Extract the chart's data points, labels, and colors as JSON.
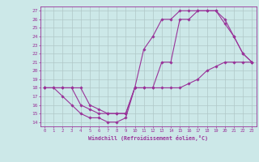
{
  "xlabel": "Windchill (Refroidissement éolien,°C)",
  "xlim": [
    -0.5,
    23.5
  ],
  "ylim": [
    13.5,
    27.5
  ],
  "xticks": [
    0,
    1,
    2,
    3,
    4,
    5,
    6,
    7,
    8,
    9,
    10,
    11,
    12,
    13,
    14,
    15,
    16,
    17,
    18,
    19,
    20,
    21,
    22,
    23
  ],
  "yticks": [
    14,
    15,
    16,
    17,
    18,
    19,
    20,
    21,
    22,
    23,
    24,
    25,
    26,
    27
  ],
  "bg_color": "#cce8e8",
  "grid_color": "#b0c8c8",
  "line_color": "#993399",
  "line1_x": [
    0,
    1,
    2,
    3,
    4,
    5,
    6,
    7,
    8,
    9,
    10,
    11,
    12,
    13,
    14,
    15,
    16,
    17,
    18,
    19,
    20,
    21,
    22,
    23
  ],
  "line1_y": [
    18,
    18,
    17,
    16,
    15,
    14.5,
    14.5,
    14,
    14,
    14.5,
    18,
    18,
    18,
    21,
    21,
    26,
    26,
    27,
    27,
    27,
    25.5,
    24,
    22,
    21
  ],
  "line2_x": [
    0,
    1,
    2,
    3,
    4,
    5,
    6,
    7,
    8,
    9,
    10,
    11,
    12,
    13,
    14,
    15,
    16,
    17,
    18,
    19,
    20,
    21,
    22,
    23
  ],
  "line2_y": [
    18,
    18,
    18,
    18,
    16,
    15.5,
    15,
    15,
    15,
    15,
    18,
    18,
    18,
    18,
    18,
    18,
    18.5,
    19,
    20,
    20.5,
    21,
    21,
    21,
    21
  ],
  "line3_x": [
    0,
    2,
    3,
    4,
    5,
    6,
    7,
    8,
    9,
    10,
    11,
    12,
    13,
    14,
    15,
    16,
    17,
    18,
    19,
    20,
    21,
    22,
    23
  ],
  "line3_y": [
    18,
    18,
    18,
    18,
    16,
    15.5,
    15,
    15,
    15,
    18,
    22.5,
    24,
    26,
    26,
    27,
    27,
    27,
    27,
    27,
    26,
    24,
    22,
    21
  ]
}
